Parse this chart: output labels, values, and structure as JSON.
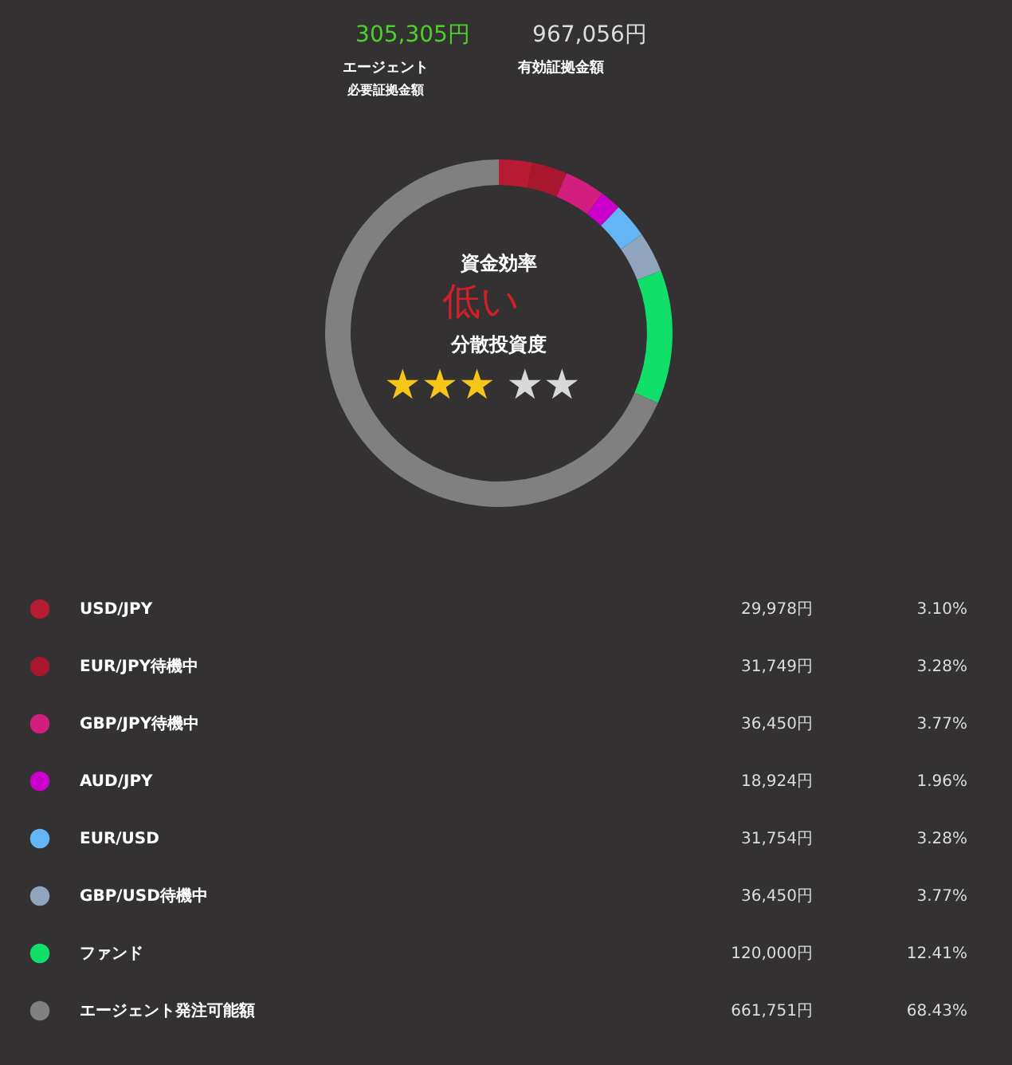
{
  "chart_data": {
    "type": "donut",
    "categories": [
      "USD/JPY",
      "EUR/JPY待機中",
      "GBP/JPY待機中",
      "AUD/JPY",
      "EUR/USD",
      "GBP/USD待機中",
      "ファンド",
      "エージェント発注可能額"
    ],
    "values": [
      29978,
      31749,
      36450,
      18924,
      31754,
      36450,
      120000,
      661751
    ],
    "colors": [
      "#b71c32",
      "#a8172d",
      "#d21e7e",
      "#cc00cc",
      "#64b5f6",
      "#90a4be",
      "#10e06a",
      "#808080"
    ],
    "value_labels": [
      "29,978円",
      "31,749円",
      "36,450円",
      "18,924円",
      "31,754円",
      "36,450円",
      "120,000円",
      "661,751円"
    ],
    "legend": "bottom",
    "annotations": [
      "305,305円",
      "エージェント",
      "必要証拠金額",
      "967,056円",
      "有効証拠金額",
      "資金効率",
      "低い",
      "分散投資度",
      "★★★",
      "★★",
      "3.10%",
      "3.28%",
      "3.77%",
      "1.96%",
      "3.28%",
      "3.77%",
      "12.41%",
      "68.43%"
    ]
  }
}
